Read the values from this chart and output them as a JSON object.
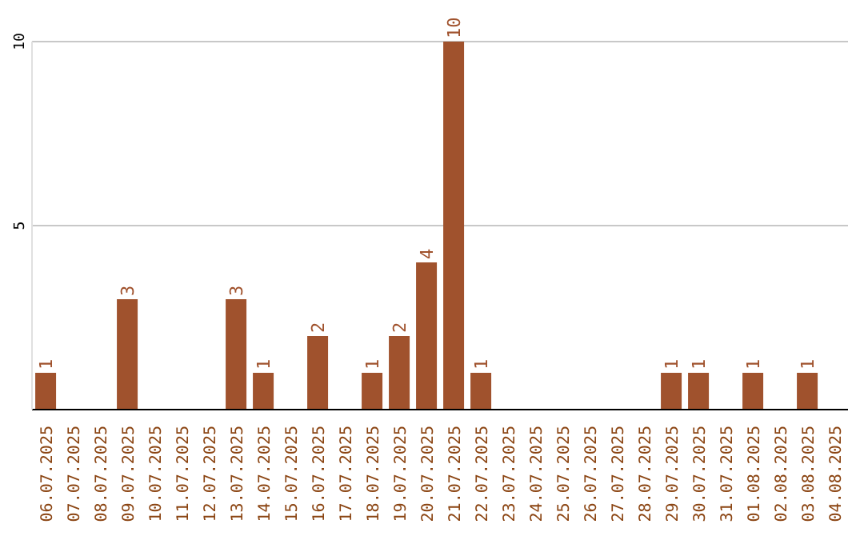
{
  "chart_data": {
    "type": "bar",
    "categories": [
      "06.07.2025",
      "07.07.2025",
      "08.07.2025",
      "09.07.2025",
      "10.07.2025",
      "11.07.2025",
      "12.07.2025",
      "13.07.2025",
      "14.07.2025",
      "15.07.2025",
      "16.07.2025",
      "17.07.2025",
      "18.07.2025",
      "19.07.2025",
      "20.07.2025",
      "21.07.2025",
      "22.07.2025",
      "23.07.2025",
      "24.07.2025",
      "25.07.2025",
      "26.07.2025",
      "27.07.2025",
      "28.07.2025",
      "29.07.2025",
      "30.07.2025",
      "31.07.2025",
      "01.08.2025",
      "02.08.2025",
      "03.08.2025",
      "04.08.2025"
    ],
    "values": [
      1,
      0,
      0,
      3,
      0,
      0,
      0,
      3,
      1,
      0,
      2,
      0,
      1,
      2,
      4,
      10,
      1,
      0,
      0,
      0,
      0,
      0,
      0,
      1,
      1,
      0,
      1,
      0,
      1,
      0
    ],
    "value_labels": [
      "1",
      null,
      null,
      "3",
      null,
      null,
      null,
      "3",
      "1",
      null,
      "2",
      null,
      "1",
      "2",
      "4",
      "10",
      "1",
      null,
      null,
      null,
      null,
      null,
      null,
      "1",
      "1",
      null,
      "1",
      null,
      "1",
      null
    ],
    "color": "#a0522d",
    "ylim": [
      0,
      10
    ],
    "yticks": [
      5,
      10
    ],
    "grid": "y"
  }
}
